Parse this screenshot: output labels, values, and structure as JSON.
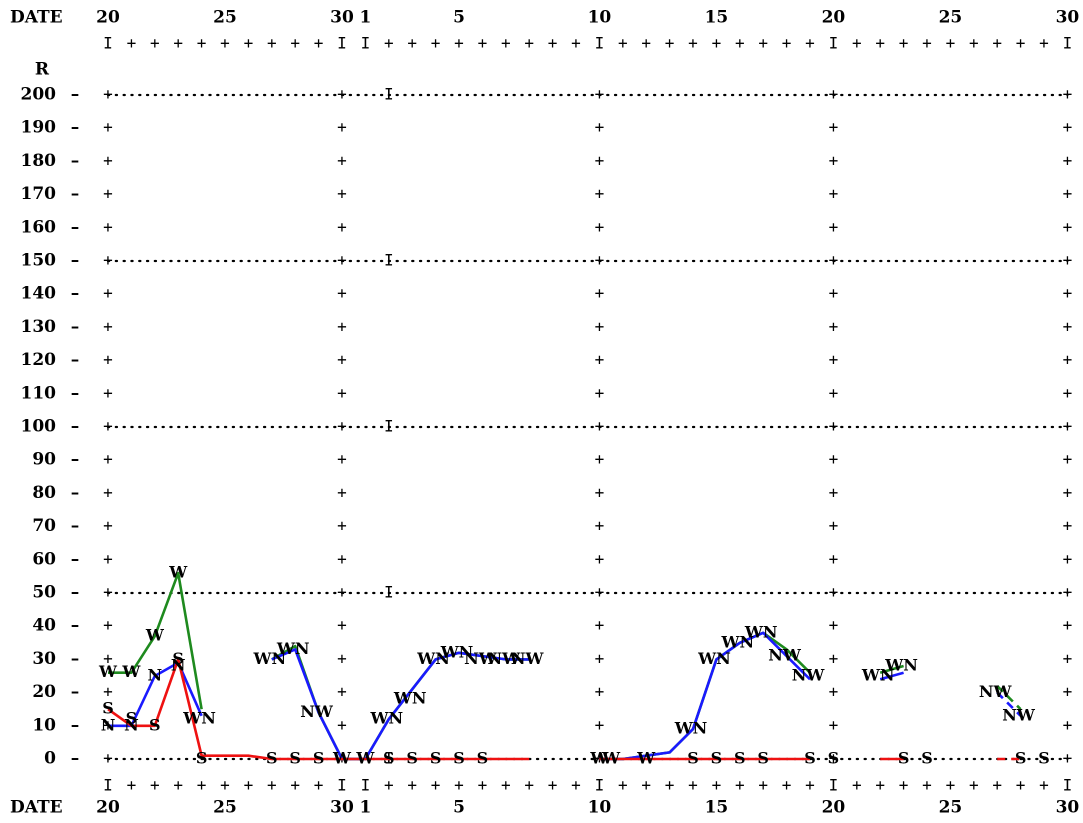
{
  "chart_data": {
    "type": "line",
    "x_axis_label": "DATE",
    "y_axis_label": "R",
    "x_tick_labels": [
      "20",
      "25",
      "30",
      "1",
      "5",
      "10",
      "15",
      "20",
      "25",
      "30"
    ],
    "y_ticks": [
      0,
      10,
      20,
      30,
      40,
      50,
      60,
      70,
      80,
      90,
      100,
      110,
      120,
      130,
      140,
      150,
      160,
      170,
      180,
      190,
      200
    ],
    "ylim": [
      0,
      200
    ],
    "dotted_gridlines_at": [
      0,
      50,
      100,
      150,
      200
    ],
    "colors": {
      "W": "#1e8a1e",
      "N": "#1a1aff",
      "S": "#ee1111"
    },
    "series": [
      {
        "name": "W",
        "color": "#1e8a1e",
        "values": [
          26,
          26,
          37,
          56,
          15,
          null,
          null,
          30,
          34,
          14,
          0,
          0,
          12,
          21,
          30,
          32,
          31,
          30,
          30,
          null,
          null,
          0,
          0,
          1,
          2,
          9,
          30,
          35,
          38,
          33,
          26,
          null,
          null,
          26,
          28,
          null,
          null,
          null,
          22,
          15,
          null
        ],
        "dashed_after_index": null
      },
      {
        "name": "N",
        "color": "#1a1aff",
        "values": [
          10,
          10,
          25,
          29,
          13,
          null,
          null,
          30,
          33,
          14,
          0,
          0,
          12,
          21,
          30,
          32,
          31,
          30,
          30,
          null,
          null,
          0,
          0,
          1,
          2,
          9,
          30,
          35,
          38,
          31,
          24,
          null,
          null,
          24,
          26,
          null,
          null,
          null,
          20,
          13,
          null
        ]
      },
      {
        "name": "S",
        "color": "#ee1111",
        "values": [
          15,
          10,
          10,
          30,
          1,
          1,
          1,
          0,
          0,
          0,
          0,
          0,
          0,
          0,
          0,
          0,
          0,
          0,
          0,
          null,
          null,
          0,
          0,
          0,
          0,
          0,
          0,
          0,
          0,
          0,
          0,
          null,
          null,
          0,
          0,
          null,
          null,
          null,
          0,
          0,
          null
        ]
      }
    ],
    "point_labels": [
      {
        "day": 0,
        "r": 26,
        "text": "W"
      },
      {
        "day": 1,
        "r": 26,
        "text": "W"
      },
      {
        "day": 2,
        "r": 37,
        "text": "W"
      },
      {
        "day": 3,
        "r": 56,
        "text": "W"
      },
      {
        "day": 0,
        "r": 15,
        "text": "S"
      },
      {
        "day": 0,
        "r": 10,
        "text": "N"
      },
      {
        "day": 1,
        "r": 10,
        "text": "N"
      },
      {
        "day": 1,
        "r": 12,
        "text": "S"
      },
      {
        "day": 2,
        "r": 10,
        "text": "S"
      },
      {
        "day": 2,
        "r": 25,
        "text": "N"
      },
      {
        "day": 3,
        "r": 30,
        "text": "S"
      },
      {
        "day": 3,
        "r": 28,
        "text": "N"
      },
      {
        "day": 4,
        "r": 12,
        "text": "WN"
      },
      {
        "day": 4,
        "r": 0,
        "text": "S"
      },
      {
        "day": 7,
        "r": 30,
        "text": "WN"
      },
      {
        "day": 8,
        "r": 33,
        "text": "WN"
      },
      {
        "day": 9,
        "r": 14,
        "text": "NW"
      },
      {
        "day": 7,
        "r": 0,
        "text": "S"
      },
      {
        "day": 8,
        "r": 0,
        "text": "S"
      },
      {
        "day": 9,
        "r": 0,
        "text": "S"
      },
      {
        "day": 10,
        "r": 0,
        "text": "W"
      },
      {
        "day": 11,
        "r": 0,
        "text": "W"
      },
      {
        "day": 12,
        "r": 12,
        "text": "WN"
      },
      {
        "day": 13,
        "r": 18,
        "text": "WN"
      },
      {
        "day": 14,
        "r": 30,
        "text": "WN"
      },
      {
        "day": 15,
        "r": 32,
        "text": "WN"
      },
      {
        "day": 16,
        "r": 30,
        "text": "NW"
      },
      {
        "day": 17,
        "r": 30,
        "text": "NW"
      },
      {
        "day": 18,
        "r": 30,
        "text": "NW"
      },
      {
        "day": 12,
        "r": 0,
        "text": "S"
      },
      {
        "day": 13,
        "r": 0,
        "text": "S"
      },
      {
        "day": 14,
        "r": 0,
        "text": "S"
      },
      {
        "day": 15,
        "r": 0,
        "text": "S"
      },
      {
        "day": 16,
        "r": 0,
        "text": "S"
      },
      {
        "day": 21,
        "r": 0,
        "text": "W"
      },
      {
        "day": 21.5,
        "r": 0,
        "text": "W"
      },
      {
        "day": 23,
        "r": 0,
        "text": "W"
      },
      {
        "day": 25,
        "r": 9,
        "text": "WN"
      },
      {
        "day": 26,
        "r": 30,
        "text": "WN"
      },
      {
        "day": 27,
        "r": 35,
        "text": "WN"
      },
      {
        "day": 28,
        "r": 38,
        "text": "WN"
      },
      {
        "day": 29,
        "r": 31,
        "text": "NW"
      },
      {
        "day": 30,
        "r": 25,
        "text": "NW"
      },
      {
        "day": 33,
        "r": 25,
        "text": "WN"
      },
      {
        "day": 34,
        "r": 28,
        "text": "WN"
      },
      {
        "day": 38,
        "r": 20,
        "text": "NW"
      },
      {
        "day": 39,
        "r": 13,
        "text": "NW"
      },
      {
        "day": 25,
        "r": 0,
        "text": "S"
      },
      {
        "day": 26,
        "r": 0,
        "text": "S"
      },
      {
        "day": 27,
        "r": 0,
        "text": "S"
      },
      {
        "day": 28,
        "r": 0,
        "text": "S"
      },
      {
        "day": 30,
        "r": 0,
        "text": "S"
      },
      {
        "day": 31,
        "r": 0,
        "text": "S"
      },
      {
        "day": 34,
        "r": 0,
        "text": "S"
      },
      {
        "day": 35,
        "r": 0,
        "text": "S"
      },
      {
        "day": 39,
        "r": 0,
        "text": "S"
      },
      {
        "day": 40,
        "r": 0,
        "text": "S"
      }
    ]
  }
}
